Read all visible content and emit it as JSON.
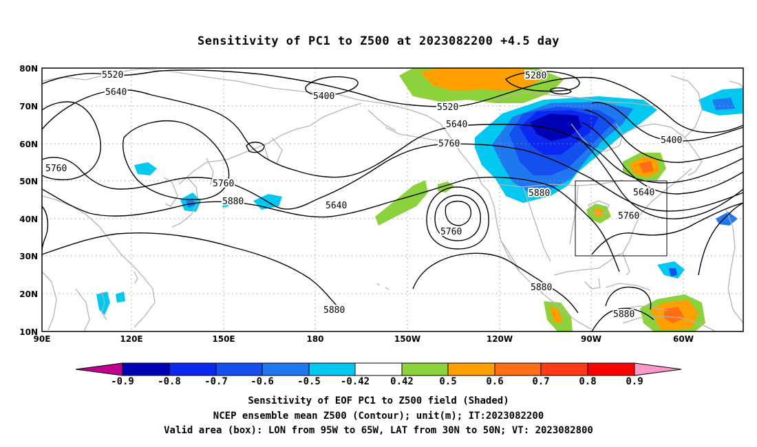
{
  "title": "Sensitivity of PC1 to Z500 at 2023082200 +4.5 day",
  "axes": {
    "lat_labels": [
      "80N",
      "70N",
      "60N",
      "50N",
      "40N",
      "30N",
      "20N",
      "10N"
    ],
    "lon_labels": [
      "90E",
      "120E",
      "150E",
      "180",
      "150W",
      "120W",
      "90W",
      "60W"
    ]
  },
  "contour_labels": [
    {
      "text": "5520"
    },
    {
      "text": "5640"
    },
    {
      "text": "5400"
    },
    {
      "text": "5760"
    },
    {
      "text": "5760"
    },
    {
      "text": "5880"
    },
    {
      "text": "5640"
    },
    {
      "text": "5760"
    },
    {
      "text": "5280"
    },
    {
      "text": "5520"
    },
    {
      "text": "5640"
    },
    {
      "text": "5760"
    },
    {
      "text": "5880"
    },
    {
      "text": "5400"
    },
    {
      "text": "5640"
    },
    {
      "text": "5760"
    },
    {
      "text": "5880"
    },
    {
      "text": "5880"
    },
    {
      "text": "5880"
    }
  ],
  "colorbar": {
    "labels": [
      "-0.9",
      "-0.8",
      "-0.7",
      "-0.6",
      "-0.5",
      "-0.42",
      "0.42",
      "0.5",
      "0.6",
      "0.7",
      "0.8",
      "0.9"
    ],
    "colors": [
      "#c0008f",
      "#0000b4",
      "#0a28f0",
      "#1450f0",
      "#1e78f0",
      "#00c8f0",
      "#ffffff",
      "#8cd23c",
      "#ffa000",
      "#ff6e14",
      "#ff3c14",
      "#ff0000",
      "#ff99c8"
    ]
  },
  "valid_box": {
    "lon_min": "95W",
    "lon_max": "65W",
    "lat_min": "30N",
    "lat_max": "50N"
  },
  "captions": {
    "line1": "Sensitivity of EOF PC1 to Z500 field (Shaded)",
    "line2": "NCEP ensemble mean Z500 (Contour); unit(m); IT:2023082200",
    "line3": "Valid area (box): LON from 95W to 65W, LAT from 30N to 50N; VT: 2023082800"
  }
}
